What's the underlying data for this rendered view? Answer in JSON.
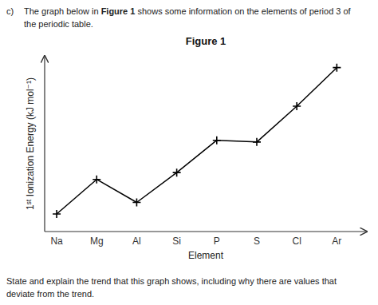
{
  "chart_data": {
    "type": "line",
    "title": "Figure 1",
    "x_label": "Element",
    "y_label": "1ˢᵗ Ionization Energy (kJ mol⁻¹)",
    "categories": [
      "Na",
      "Mg",
      "Al",
      "Si",
      "P",
      "S",
      "Cl",
      "Ar"
    ],
    "values": [
      496,
      738,
      577,
      786,
      1012,
      1000,
      1251,
      1521
    ],
    "color": "#000000",
    "marker": "plus",
    "ylim": [
      373,
      1603
    ],
    "tick_labels": "x",
    "grid": false,
    "annotations": [
      "c)",
      "The graph below in ",
      "Figure 1",
      " shows some information on the elements of period 3 of",
      "the periodic table.",
      "State and explain the trend that this graph shows, including why there are values that",
      "deviate from the trend."
    ]
  }
}
